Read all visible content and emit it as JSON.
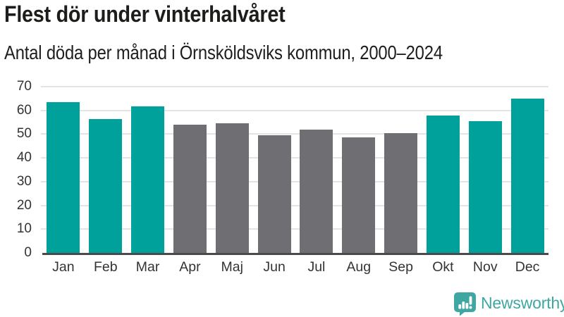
{
  "header": {
    "title": "Flest dör under vinterhalvåret",
    "subtitle": "Antal döda per månad i Örnsköldsviks kommun, 2000–2024"
  },
  "footer": {
    "brand": "Newsworthy",
    "logo_icon": "speech-bubble-with-bar-chart-and-exclamation"
  },
  "colors": {
    "winter_bar_teal": "#00a09b",
    "summer_bar_gray": "#6e6e73",
    "gridline": "#e4e4e4",
    "axis_line": "#4a4a4d",
    "tick_text": "#333333",
    "title_text": "#1d1d1b",
    "brand_teal": "#3fa7a2"
  },
  "chart_data": {
    "type": "bar",
    "title": "Flest dör under vinterhalvåret",
    "subtitle": "Antal döda per månad i Örnsköldsviks kommun, 2000–2024",
    "categories": [
      "Jan",
      "Feb",
      "Mar",
      "Apr",
      "Maj",
      "Jun",
      "Jul",
      "Aug",
      "Sep",
      "Okt",
      "Nov",
      "Dec"
    ],
    "values": [
      63.4,
      56.3,
      61.6,
      54.0,
      54.6,
      49.5,
      52.0,
      48.8,
      50.4,
      57.8,
      55.4,
      65.0
    ],
    "bar_colors": [
      "#00a09b",
      "#00a09b",
      "#00a09b",
      "#6e6e73",
      "#6e6e73",
      "#6e6e73",
      "#6e6e73",
      "#6e6e73",
      "#6e6e73",
      "#00a09b",
      "#00a09b",
      "#00a09b"
    ],
    "highlight_note": "winter half-year months (Jan-Mar, Okt-Dec) in teal, summer months (Apr-Sep) in gray",
    "xlabel": "",
    "ylabel": "",
    "ylim": [
      0,
      70
    ],
    "yticks": [
      0,
      10,
      20,
      30,
      40,
      50,
      60,
      70
    ],
    "grid": true,
    "legend": "none"
  }
}
